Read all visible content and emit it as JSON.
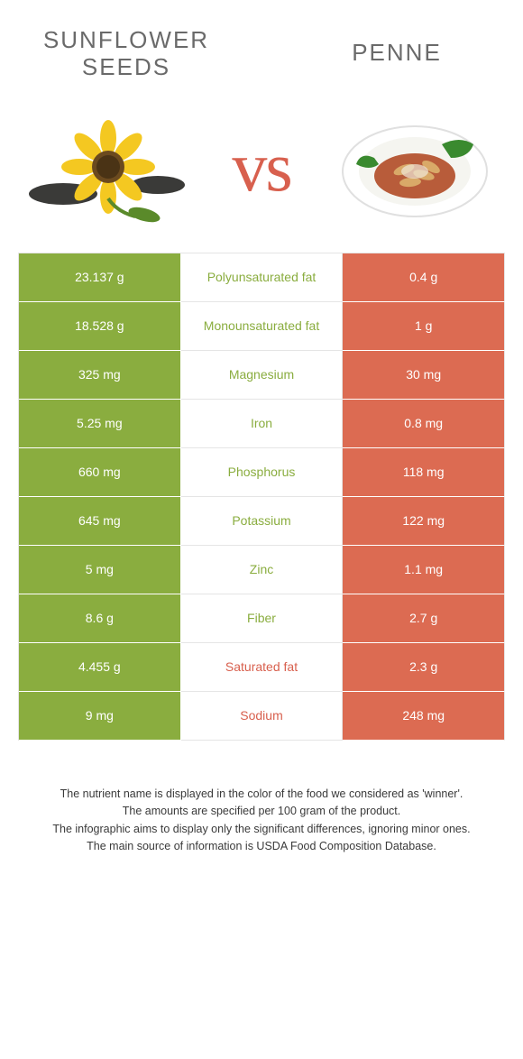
{
  "header": {
    "left_title_line1": "Sunflower",
    "left_title_line2": "seeds",
    "right_title": "Penne"
  },
  "vs_label": "vs",
  "colors": {
    "left_bg": "#8aad3f",
    "right_bg": "#dc6b52",
    "mid_green": "#8aad3f",
    "mid_orange": "#d8604e",
    "header_text": "#6a6a6a",
    "vs_text": "#d8604e"
  },
  "rows": [
    {
      "left": "23.137 g",
      "label": "Polyunsaturated fat",
      "right": "0.4 g",
      "winner": "left"
    },
    {
      "left": "18.528 g",
      "label": "Monounsaturated fat",
      "right": "1 g",
      "winner": "left"
    },
    {
      "left": "325 mg",
      "label": "Magnesium",
      "right": "30 mg",
      "winner": "left"
    },
    {
      "left": "5.25 mg",
      "label": "Iron",
      "right": "0.8 mg",
      "winner": "left"
    },
    {
      "left": "660 mg",
      "label": "Phosphorus",
      "right": "118 mg",
      "winner": "left"
    },
    {
      "left": "645 mg",
      "label": "Potassium",
      "right": "122 mg",
      "winner": "left"
    },
    {
      "left": "5 mg",
      "label": "Zinc",
      "right": "1.1 mg",
      "winner": "left"
    },
    {
      "left": "8.6 g",
      "label": "Fiber",
      "right": "2.7 g",
      "winner": "left"
    },
    {
      "left": "4.455 g",
      "label": "Saturated fat",
      "right": "2.3 g",
      "winner": "right"
    },
    {
      "left": "9 mg",
      "label": "Sodium",
      "right": "248 mg",
      "winner": "right"
    }
  ],
  "footnote": {
    "line1": "The nutrient name is displayed in the color of the food we considered as 'winner'.",
    "line2": "The amounts are specified per 100 gram of the product.",
    "line3": "The infographic aims to display only the significant differences, ignoring minor ones.",
    "line4": "The main source of information is USDA Food Composition Database."
  }
}
